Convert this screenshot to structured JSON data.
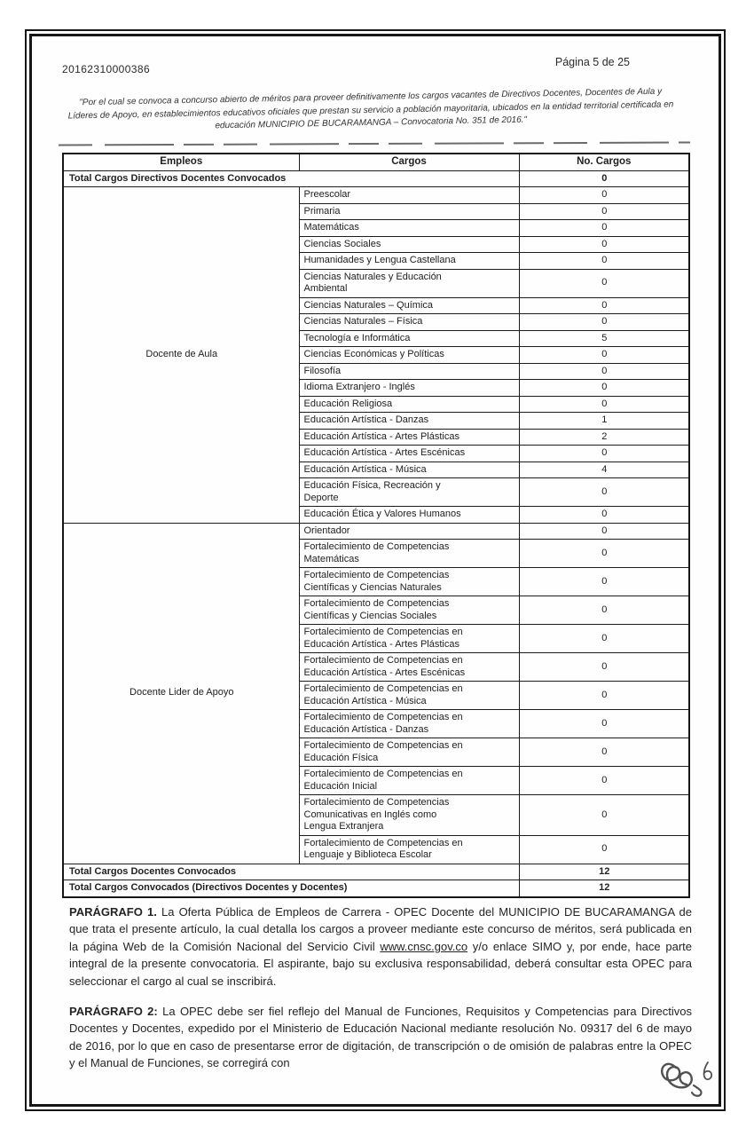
{
  "ink_color": "#161616",
  "page": {
    "doc_number": "20162310000386",
    "page_indicator": "Página 5 de 25"
  },
  "quote": "\"Por el cual se convoca a concurso abierto de méritos para proveer definitivamente los cargos vacantes de Directivos Docentes, Docentes de Aula y Líderes de Apoyo, en establecimientos educativos oficiales que prestan su servicio a población mayoritaria, ubicados en la entidad territorial certificada en educación MUNICIPIO DE BUCARAMANGA – Convocatoria No. 351 de 2016.\"",
  "table": {
    "headers": [
      "Empleos",
      "Cargos",
      "No. Cargos"
    ],
    "top_total": {
      "label": "Total Cargos Directivos Docentes Convocados",
      "value": "0"
    },
    "groups": [
      {
        "empleo": "Docente de Aula",
        "cargos": [
          {
            "cargo": "Preescolar",
            "num": "0"
          },
          {
            "cargo": "Primaria",
            "num": "0"
          },
          {
            "cargo": "Matemáticas",
            "num": "0"
          },
          {
            "cargo": "Ciencias Sociales",
            "num": "0"
          },
          {
            "cargo": "Humanidades y Lengua Castellana",
            "num": "0"
          },
          {
            "cargo": "Ciencias Naturales y Educación\nAmbiental",
            "num": "0"
          },
          {
            "cargo": "Ciencias Naturales – Química",
            "num": "0"
          },
          {
            "cargo": "Ciencias Naturales – Física",
            "num": "0"
          },
          {
            "cargo": "Tecnología e Informática",
            "num": "5"
          },
          {
            "cargo": "Ciencias Económicas y Políticas",
            "num": "0"
          },
          {
            "cargo": "Filosofía",
            "num": "0"
          },
          {
            "cargo": "Idioma Extranjero - Inglés",
            "num": "0"
          },
          {
            "cargo": "Educación Religiosa",
            "num": "0"
          },
          {
            "cargo": "Educación Artística - Danzas",
            "num": "1"
          },
          {
            "cargo": "Educación Artística - Artes Plásticas",
            "num": "2"
          },
          {
            "cargo": "Educación Artística - Artes Escénicas",
            "num": "0"
          },
          {
            "cargo": "Educación Artística - Música",
            "num": "4"
          },
          {
            "cargo": "Educación Física, Recreación y\nDeporte",
            "num": "0"
          },
          {
            "cargo": "Educación Ética y Valores Humanos",
            "num": "0"
          }
        ]
      },
      {
        "empleo": "Docente Lider de Apoyo",
        "cargos": [
          {
            "cargo": "Orientador",
            "num": "0"
          },
          {
            "cargo": "Fortalecimiento de Competencias\nMatemáticas",
            "num": "0"
          },
          {
            "cargo": "Fortalecimiento de Competencias\nCientíficas y Ciencias Naturales",
            "num": "0"
          },
          {
            "cargo": "Fortalecimiento de Competencias\nCientíficas y Ciencias Sociales",
            "num": "0"
          },
          {
            "cargo": "Fortalecimiento de Competencias en\nEducación Artística - Artes Plásticas",
            "num": "0"
          },
          {
            "cargo": "Fortalecimiento de Competencias en\nEducación Artística - Artes Escénicas",
            "num": "0"
          },
          {
            "cargo": "Fortalecimiento de Competencias en\nEducación Artística - Música",
            "num": "0"
          },
          {
            "cargo": "Fortalecimiento de Competencias en\nEducación Artística - Danzas",
            "num": "0"
          },
          {
            "cargo": "Fortalecimiento de Competencias en\nEducación Física",
            "num": "0"
          },
          {
            "cargo": "Fortalecimiento de Competencias en\nEducación Inicial",
            "num": "0"
          },
          {
            "cargo": "Fortalecimiento de Competencias\nComunicativas en Inglés como\nLengua Extranjera",
            "num": "0"
          },
          {
            "cargo": "Fortalecimiento de Competencias en\nLenguaje y Biblioteca Escolar",
            "num": "0"
          }
        ]
      }
    ],
    "bottom_totals": [
      {
        "label": "Total Cargos Docentes Convocados",
        "value": "12"
      },
      {
        "label": "Total Cargos Convocados (Directivos Docentes y Docentes)",
        "value": "12"
      }
    ]
  },
  "paragraphs": {
    "p1": {
      "label": "PARÁGRAFO 1.",
      "before_link": " La Oferta Pública de Empleos de Carrera - OPEC Docente del MUNICIPIO DE BUCARAMANGA de que trata el presente artículo, la cual detalla los cargos a proveer mediante este concurso de méritos, será publicada en la página Web de la Comisión Nacional del Servicio Civil ",
      "link": "www.cnsc.gov.co",
      "after_link": " y/o enlace SIMO y, por ende, hace parte integral de la presente convocatoria. El aspirante, bajo su exclusiva responsabilidad, deberá consultar esta OPEC para seleccionar el cargo al cual se inscribirá."
    },
    "p2": {
      "label": "PARÁGRAFO 2:",
      "text": " La OPEC debe ser fiel reflejo del Manual de Funciones, Requisitos y Competencias para Directivos Docentes y Docentes, expedido por el Ministerio de Educación Nacional mediante resolución No. 09317 del 6 de mayo de 2016, por lo que en caso de presentarse error de digitación, de transcripción o de omisión de palabras entre la OPEC y el Manual de Funciones, se corregirá con"
    }
  },
  "signature": {
    "icon": "rubric-squiggle"
  }
}
